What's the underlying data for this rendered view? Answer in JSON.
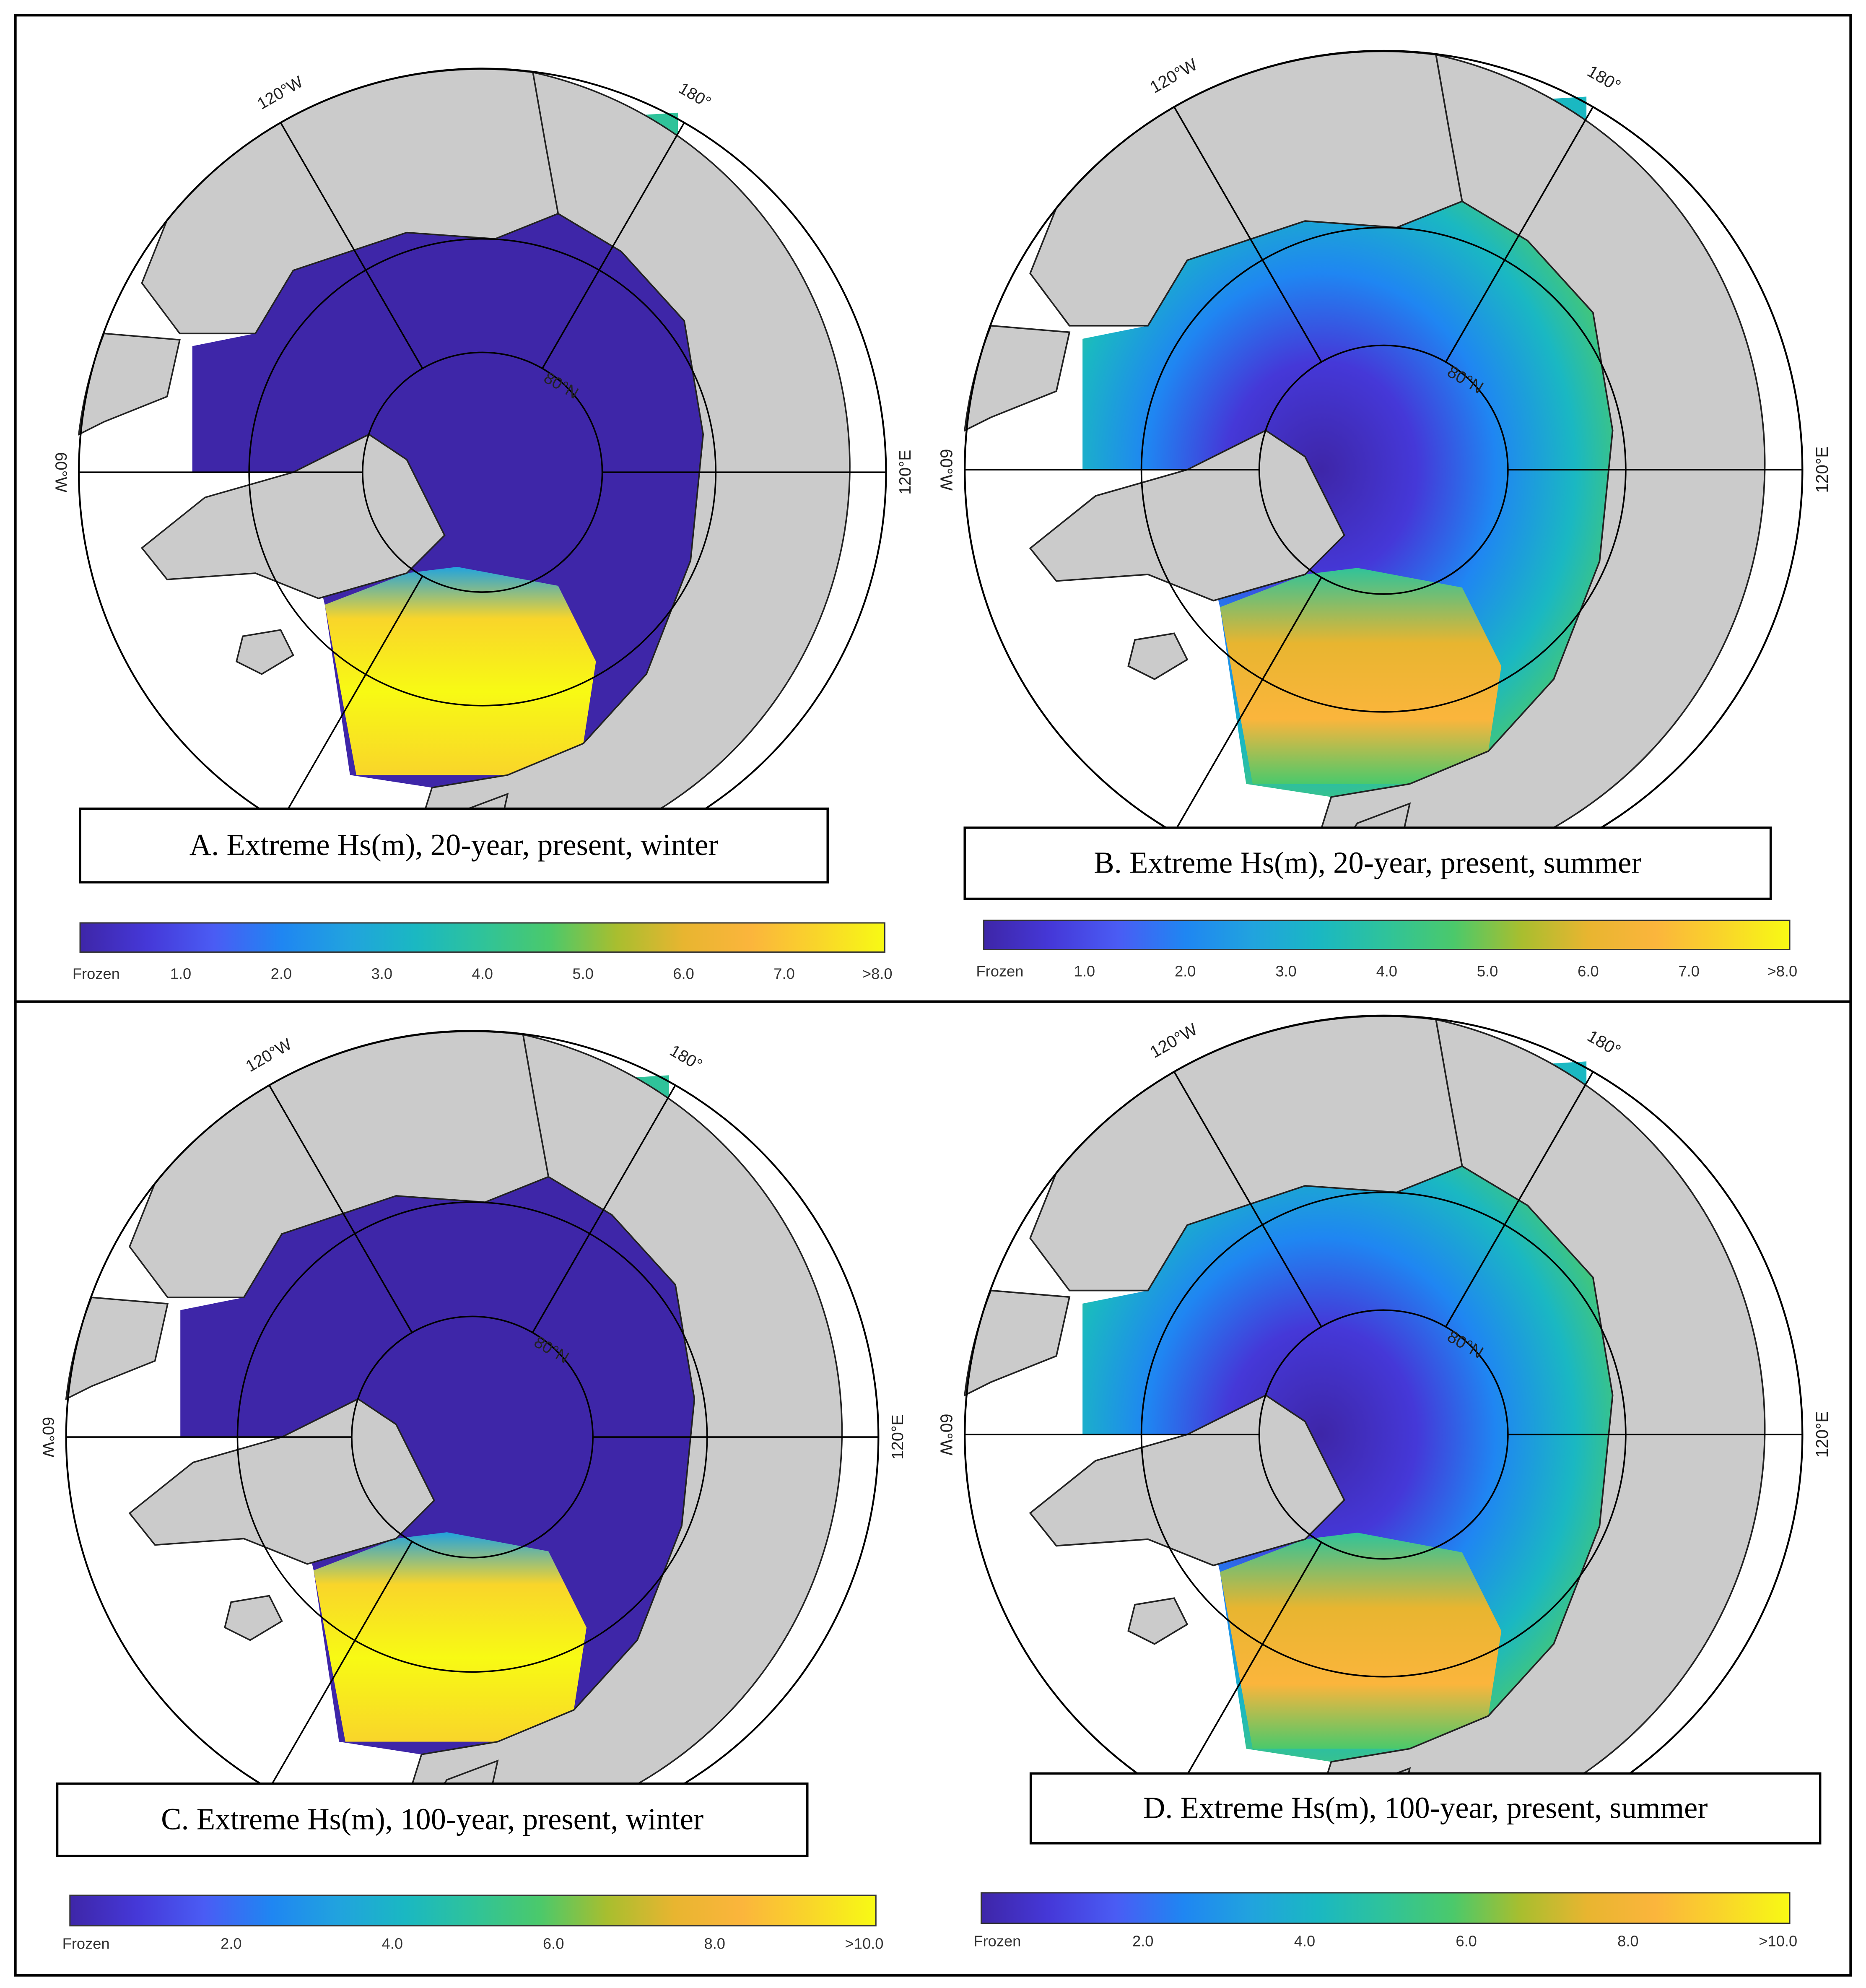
{
  "colormap": [
    "#3e26a8",
    "#4538d8",
    "#4a5cf4",
    "#1f86f2",
    "#21a3de",
    "#1ab8c2",
    "#2fc39a",
    "#4bc96b",
    "#a8be2f",
    "#e8b530",
    "#fbb53c",
    "#f9d52a",
    "#f8fa14"
  ],
  "panels": [
    {
      "title": "A. Extreme Hs(m), 20-year, present, winter",
      "graticule": [
        "120°W",
        "180°",
        "80°N",
        "60°W",
        "120°E"
      ],
      "colorbar": [
        "Frozen",
        "1.0",
        "2.0",
        "3.0",
        "4.0",
        "5.0",
        "6.0",
        "7.0",
        ">8.0"
      ]
    },
    {
      "title": "B. Extreme Hs(m), 20-year, present, summer",
      "graticule": [
        "120°W",
        "180°",
        "80°N",
        "60°W",
        "120°E"
      ],
      "colorbar": [
        "Frozen",
        "1.0",
        "2.0",
        "3.0",
        "4.0",
        "5.0",
        "6.0",
        "7.0",
        ">8.0"
      ]
    },
    {
      "title": "C. Extreme Hs(m), 100-year, present, winter",
      "graticule": [
        "120°W",
        "180°",
        "80°N",
        "60°W",
        "120°E"
      ],
      "colorbar": [
        "Frozen",
        "2.0",
        "4.0",
        "6.0",
        "8.0",
        ">10.0"
      ]
    },
    {
      "title": "D. Extreme Hs(m), 100-year, present, summer",
      "graticule": [
        "120°W",
        "180°",
        "80°N",
        "60°W",
        "120°E"
      ],
      "colorbar": [
        "Frozen",
        "2.0",
        "4.0",
        "6.0",
        "8.0",
        ">10.0"
      ]
    }
  ]
}
